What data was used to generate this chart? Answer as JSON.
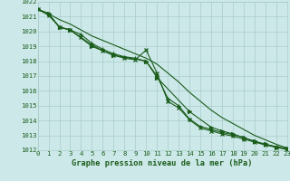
{
  "background_color": "#cce8e8",
  "grid_color": "#aacccc",
  "line_color": "#1a5c1a",
  "title": "Graphe pression niveau de la mer (hPa)",
  "ylim": [
    1012,
    1022
  ],
  "xlim": [
    0,
    23
  ],
  "yticks": [
    1012,
    1013,
    1014,
    1015,
    1016,
    1017,
    1018,
    1019,
    1020,
    1021,
    1022
  ],
  "xticks": [
    0,
    1,
    2,
    3,
    4,
    5,
    6,
    7,
    8,
    9,
    10,
    11,
    12,
    13,
    14,
    15,
    16,
    17,
    18,
    19,
    20,
    21,
    22,
    23
  ],
  "y_straight": [
    1021.5,
    1021.2,
    1020.8,
    1020.5,
    1020.1,
    1019.7,
    1019.4,
    1019.1,
    1018.8,
    1018.5,
    1018.2,
    1017.8,
    1017.2,
    1016.6,
    1015.9,
    1015.3,
    1014.7,
    1014.2,
    1013.8,
    1013.4,
    1013.0,
    1012.7,
    1012.4,
    1012.15
  ],
  "y_marked_all_x": [
    0,
    1,
    2,
    3,
    4,
    5,
    6,
    7,
    8,
    9,
    10,
    11,
    12,
    13,
    14,
    15,
    16,
    17,
    18,
    19,
    20,
    21,
    22,
    23
  ],
  "y_marked_all": [
    1021.5,
    1021.2,
    1020.3,
    1020.1,
    1019.8,
    1019.2,
    1018.8,
    1018.5,
    1018.3,
    1018.2,
    1018.0,
    1017.0,
    1015.5,
    1015.0,
    1014.1,
    1013.6,
    1013.4,
    1013.2,
    1013.05,
    1012.85,
    1012.6,
    1012.4,
    1012.25,
    1012.1
  ],
  "y_spike_x": [
    0,
    1,
    2,
    3,
    4,
    5,
    6,
    7,
    8,
    9,
    10,
    11,
    12,
    13,
    14,
    15,
    16,
    17,
    18,
    19,
    20,
    21,
    22,
    23
  ],
  "y_spike": [
    1021.5,
    1021.1,
    1020.3,
    1020.1,
    1019.6,
    1019.1,
    1018.7,
    1018.4,
    1018.2,
    1018.1,
    1018.75,
    1017.2,
    1015.3,
    1014.85,
    1014.05,
    1013.5,
    1013.3,
    1013.1,
    1012.95,
    1012.75,
    1012.55,
    1012.35,
    1012.2,
    1012.05
  ],
  "y_sparse_x": [
    0,
    1,
    2,
    3,
    5,
    7,
    10,
    11,
    14,
    16,
    17,
    18,
    19,
    20,
    21,
    22,
    23
  ],
  "y_sparse": [
    1021.5,
    1021.2,
    1020.3,
    1020.1,
    1019.0,
    1018.4,
    1018.0,
    1016.9,
    1014.6,
    1013.55,
    1013.3,
    1013.1,
    1012.85,
    1012.6,
    1012.4,
    1012.2,
    1012.1
  ]
}
